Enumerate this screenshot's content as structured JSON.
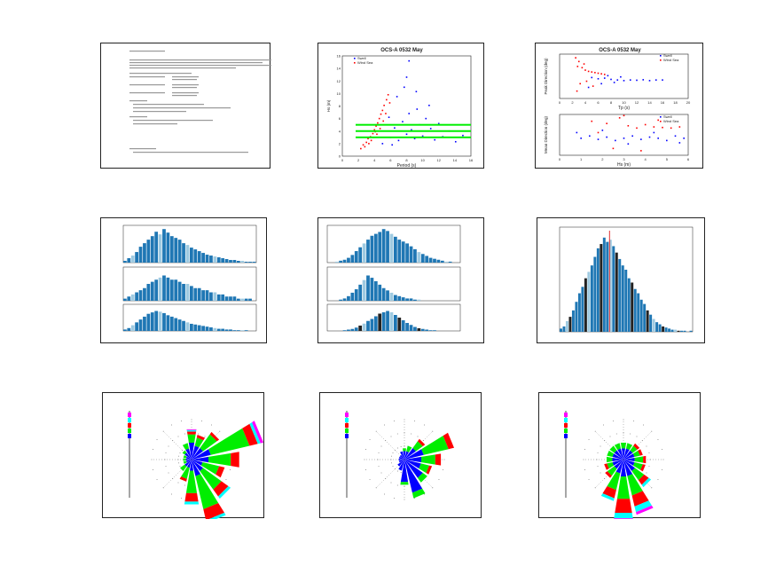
{
  "colors": {
    "swell": "#0000ff",
    "windsea": "#ff0000",
    "threshold": "#00ee00",
    "bar": "#1f77b4",
    "median": "#e03030",
    "rose_bins": [
      "#0000ff",
      "#00ee00",
      "#ff0000",
      "#00ffff",
      "#ff00ff"
    ]
  },
  "chart_data": [
    {
      "type": "table",
      "panel": "summary-document",
      "note_lines": 22
    },
    {
      "type": "scatter",
      "title": "OCS-A 0532 May",
      "xlabel": "Period (s)",
      "ylabel": "Hs (m)",
      "xlim": [
        0,
        16
      ],
      "ylim": [
        0,
        16
      ],
      "xticks": [
        "0",
        "2",
        "4",
        "6",
        "8",
        "10",
        "12",
        "14",
        "16"
      ],
      "yticks": [
        "0",
        "2",
        "4",
        "6",
        "8",
        "10",
        "12",
        "14",
        "16"
      ],
      "legend": [
        "Swell",
        "Wind Sea"
      ],
      "threshold_lines": [
        3,
        4,
        5
      ],
      "series": [
        {
          "name": "Wind Sea",
          "points": [
            [
              2.3,
              1.2
            ],
            [
              2.6,
              1.8
            ],
            [
              3,
              2.2
            ],
            [
              3.2,
              2.8
            ],
            [
              3.5,
              3.1
            ],
            [
              3.8,
              3.6
            ],
            [
              4,
              4.2
            ],
            [
              4.2,
              4.8
            ],
            [
              4.4,
              5.3
            ],
            [
              4.6,
              6
            ],
            [
              4.8,
              6.7
            ],
            [
              5,
              7.3
            ],
            [
              5.2,
              8.1
            ],
            [
              5.5,
              9
            ],
            [
              5.7,
              9.8
            ],
            [
              3.3,
              2
            ],
            [
              3.9,
              3
            ],
            [
              4.3,
              3.5
            ],
            [
              4.7,
              4.4
            ],
            [
              5.1,
              5.6
            ],
            [
              2.8,
              1.5
            ],
            [
              3.6,
              2.5
            ],
            [
              4.1,
              3.9
            ],
            [
              5.4,
              6.8
            ],
            [
              5.9,
              8.5
            ]
          ]
        },
        {
          "name": "Swell",
          "points": [
            [
              5,
              2
            ],
            [
              6,
              3
            ],
            [
              6.5,
              4.5
            ],
            [
              7,
              2.5
            ],
            [
              7.5,
              5.5
            ],
            [
              8,
              3.5
            ],
            [
              8.3,
              6.8
            ],
            [
              8.6,
              4.2
            ],
            [
              9,
              2.8
            ],
            [
              9.3,
              7.5
            ],
            [
              9.6,
              5
            ],
            [
              10,
              3.2
            ],
            [
              10.4,
              6
            ],
            [
              11,
              4.4
            ],
            [
              11.5,
              2.6
            ],
            [
              12,
              5.2
            ],
            [
              12.5,
              3.1
            ],
            [
              13.3,
              4
            ],
            [
              14.1,
              2.3
            ],
            [
              15,
              3.3
            ],
            [
              6.8,
              9.5
            ],
            [
              8,
              12.6
            ],
            [
              8.3,
              15.2
            ],
            [
              7.7,
              11
            ],
            [
              9.2,
              10.3
            ],
            [
              5.8,
              6.2
            ],
            [
              6.2,
              1.8
            ],
            [
              10.8,
              8.1
            ]
          ]
        }
      ]
    },
    {
      "type": "scatter",
      "title": "OCS-A 0532 May",
      "legend": [
        "Swell",
        "Wind Sea"
      ],
      "top": {
        "xlabel": "Tp (s)",
        "ylabel": "Peak Direction (deg)",
        "xlim": [
          0,
          20
        ],
        "ylim": [
          0,
          360
        ],
        "xticks": [
          "0",
          "2",
          "4",
          "6",
          "8",
          "10",
          "12",
          "14",
          "16",
          "18",
          "20"
        ],
        "series": [
          {
            "name": "Wind Sea",
            "points": [
              [
                2.5,
                330
              ],
              [
                3,
                300
              ],
              [
                2.8,
                260
              ],
              [
                3.5,
                250
              ],
              [
                4,
                230
              ],
              [
                4.5,
                220
              ],
              [
                5,
                215
              ],
              [
                5.5,
                210
              ],
              [
                6,
                205
              ],
              [
                6.5,
                200
              ],
              [
                3.2,
                120
              ],
              [
                4.2,
                140
              ],
              [
                2.7,
                60
              ],
              [
                5.2,
                100
              ],
              [
                7,
                195
              ],
              [
                3.8,
                280
              ]
            ]
          },
          {
            "name": "Swell",
            "points": [
              [
                5,
                170
              ],
              [
                6,
                160
              ],
              [
                7,
                165
              ],
              [
                8,
                155
              ],
              [
                9,
                150
              ],
              [
                10,
                145
              ],
              [
                11,
                150
              ],
              [
                12,
                148
              ],
              [
                13,
                152
              ],
              [
                15,
                150
              ],
              [
                6.5,
                120
              ],
              [
                8.5,
                130
              ],
              [
                7.5,
                185
              ],
              [
                9.5,
                175
              ],
              [
                4.5,
                90
              ],
              [
                14,
                145
              ],
              [
                16,
                150
              ]
            ]
          }
        ]
      },
      "bottom": {
        "xlabel": "Hs (m)",
        "ylabel": "Mean Direction (deg)",
        "xlim": [
          0,
          6
        ],
        "ylim": [
          0,
          360
        ],
        "xticks": [
          "0",
          "1",
          "2",
          "3",
          "4",
          "5",
          "6"
        ],
        "series": [
          {
            "name": "Wind Sea",
            "points": [
              [
                1.5,
                300
              ],
              [
                2.2,
                280
              ],
              [
                2.8,
                330
              ],
              [
                3.2,
                260
              ],
              [
                3.6,
                240
              ],
              [
                4,
                270
              ],
              [
                4.4,
                250
              ],
              [
                4.8,
                245
              ],
              [
                5.2,
                240
              ],
              [
                5.6,
                250
              ],
              [
                2.5,
                60
              ],
              [
                3.8,
                40
              ],
              [
                1.8,
                200
              ],
              [
                4.6,
                310
              ],
              [
                3,
                350
              ]
            ]
          },
          {
            "name": "Swell",
            "points": [
              [
                1,
                150
              ],
              [
                1.4,
                170
              ],
              [
                1.8,
                140
              ],
              [
                2.2,
                160
              ],
              [
                2.6,
                130
              ],
              [
                3,
                150
              ],
              [
                3.4,
                170
              ],
              [
                3.8,
                140
              ],
              [
                4.2,
                160
              ],
              [
                4.6,
                150
              ],
              [
                5,
                130
              ],
              [
                5.4,
                170
              ],
              [
                5.8,
                150
              ],
              [
                0.8,
                200
              ],
              [
                2,
                220
              ],
              [
                3.2,
                100
              ],
              [
                4.4,
                200
              ],
              [
                5.6,
                110
              ]
            ]
          }
        ]
      }
    },
    {
      "type": "bar",
      "stacked_panels": 3,
      "values": [
        [
          2,
          5,
          8,
          12,
          18,
          22,
          26,
          30,
          35,
          32,
          38,
          34,
          30,
          28,
          26,
          22,
          20,
          17,
          15,
          13,
          11,
          9,
          8,
          7,
          6,
          5,
          4,
          3,
          3,
          2,
          2,
          1,
          1,
          1
        ],
        [
          1,
          2,
          3,
          4,
          5,
          6,
          8,
          9,
          10,
          11,
          12,
          11,
          10,
          10,
          9,
          8,
          8,
          7,
          6,
          6,
          5,
          5,
          4,
          4,
          3,
          3,
          2,
          2,
          2,
          1,
          1,
          1,
          1,
          0
        ],
        [
          2,
          4,
          8,
          12,
          16,
          20,
          24,
          26,
          28,
          27,
          25,
          22,
          20,
          18,
          16,
          14,
          12,
          10,
          9,
          8,
          7,
          6,
          5,
          4,
          3,
          3,
          2,
          2,
          1,
          1,
          1,
          1,
          0,
          0
        ]
      ]
    },
    {
      "type": "bar",
      "stacked_panels": 3,
      "values": [
        [
          0,
          0,
          1,
          2,
          3,
          5,
          8,
          12,
          16,
          20,
          24,
          28,
          30,
          32,
          35,
          33,
          30,
          27,
          24,
          22,
          20,
          17,
          14,
          11,
          9,
          7,
          5,
          4,
          3,
          2,
          1,
          1,
          0,
          0
        ],
        [
          0,
          0,
          0,
          1,
          2,
          4,
          7,
          10,
          14,
          18,
          22,
          20,
          17,
          14,
          11,
          9,
          7,
          5,
          4,
          3,
          2,
          2,
          1,
          1,
          0,
          0,
          0,
          0,
          0,
          0,
          0,
          0,
          0,
          0
        ],
        [
          0,
          0,
          0,
          0,
          1,
          2,
          3,
          5,
          8,
          11,
          15,
          18,
          22,
          26,
          28,
          30,
          28,
          24,
          20,
          16,
          12,
          9,
          6,
          4,
          3,
          2,
          1,
          1,
          0,
          0,
          0,
          0,
          0,
          0
        ]
      ]
    },
    {
      "type": "bar",
      "values": [
        3,
        5,
        10,
        14,
        20,
        28,
        36,
        42,
        50,
        56,
        62,
        70,
        78,
        82,
        88,
        84,
        86,
        80,
        74,
        68,
        62,
        58,
        50,
        46,
        40,
        36,
        30,
        26,
        20,
        16,
        12,
        9,
        7,
        5,
        4,
        3,
        2,
        2,
        1,
        1,
        1,
        0,
        1
      ],
      "median_bin": 16
    },
    {
      "type": "rose",
      "legend_bins": 5,
      "sectors": [
        [
          6,
          3,
          1,
          0.5,
          0.3
        ],
        [
          5,
          3,
          1,
          0,
          0
        ],
        [
          5,
          6,
          1,
          0,
          0
        ],
        [
          7,
          14,
          3,
          1,
          1
        ],
        [
          6,
          8,
          3,
          0,
          0
        ],
        [
          4,
          6,
          2,
          0,
          0
        ],
        [
          5,
          8,
          3,
          1,
          0
        ],
        [
          6,
          12,
          4,
          1,
          0
        ],
        [
          4,
          8,
          3,
          1,
          0
        ],
        [
          3,
          4,
          1,
          0,
          0
        ],
        [
          3,
          2,
          0,
          0,
          0
        ],
        [
          2,
          1,
          0,
          0,
          0
        ],
        [
          2,
          1,
          0,
          0,
          0
        ],
        [
          2,
          1,
          0,
          0,
          0
        ],
        [
          3,
          1,
          0,
          0,
          0
        ],
        [
          4,
          2,
          0,
          0,
          0
        ]
      ]
    },
    {
      "type": "rose",
      "legend_bins": 5,
      "sectors": [
        [
          3,
          1,
          0,
          0,
          0
        ],
        [
          3,
          2,
          0,
          0,
          0
        ],
        [
          5,
          3,
          1,
          0,
          0
        ],
        [
          7,
          9,
          2,
          0,
          0
        ],
        [
          6,
          5,
          2,
          0,
          0
        ],
        [
          6,
          3,
          1,
          0,
          0
        ],
        [
          8,
          2,
          0,
          0,
          0
        ],
        [
          12,
          2,
          0,
          0,
          0
        ],
        [
          8,
          1,
          0,
          0,
          0
        ],
        [
          4,
          0,
          0,
          0,
          0
        ],
        [
          3,
          0,
          0,
          0,
          0
        ],
        [
          2,
          0,
          0,
          0,
          0
        ],
        [
          2,
          0,
          0,
          0,
          0
        ],
        [
          2,
          0,
          0,
          0,
          0
        ],
        [
          2,
          0,
          0,
          0,
          0
        ],
        [
          3,
          0,
          0,
          0,
          0
        ]
      ]
    },
    {
      "type": "rose",
      "legend_bins": 5,
      "sectors": [
        [
          4,
          2,
          0,
          0,
          0
        ],
        [
          4,
          2,
          0,
          0,
          0
        ],
        [
          4,
          2,
          1,
          0,
          0
        ],
        [
          4,
          2,
          1,
          0,
          0
        ],
        [
          4,
          3,
          1,
          0,
          0
        ],
        [
          4,
          3,
          1,
          0,
          0
        ],
        [
          5,
          4,
          2,
          1,
          0
        ],
        [
          6,
          7,
          4,
          2,
          1
        ],
        [
          6,
          8,
          5,
          2,
          1
        ],
        [
          5,
          6,
          3,
          1,
          0
        ],
        [
          4,
          3,
          1,
          0,
          0
        ],
        [
          4,
          2,
          1,
          0,
          0
        ],
        [
          4,
          2,
          0,
          0,
          0
        ],
        [
          4,
          2,
          0,
          0,
          0
        ],
        [
          4,
          2,
          0,
          0,
          0
        ],
        [
          4,
          2,
          0,
          0,
          0
        ]
      ]
    }
  ]
}
